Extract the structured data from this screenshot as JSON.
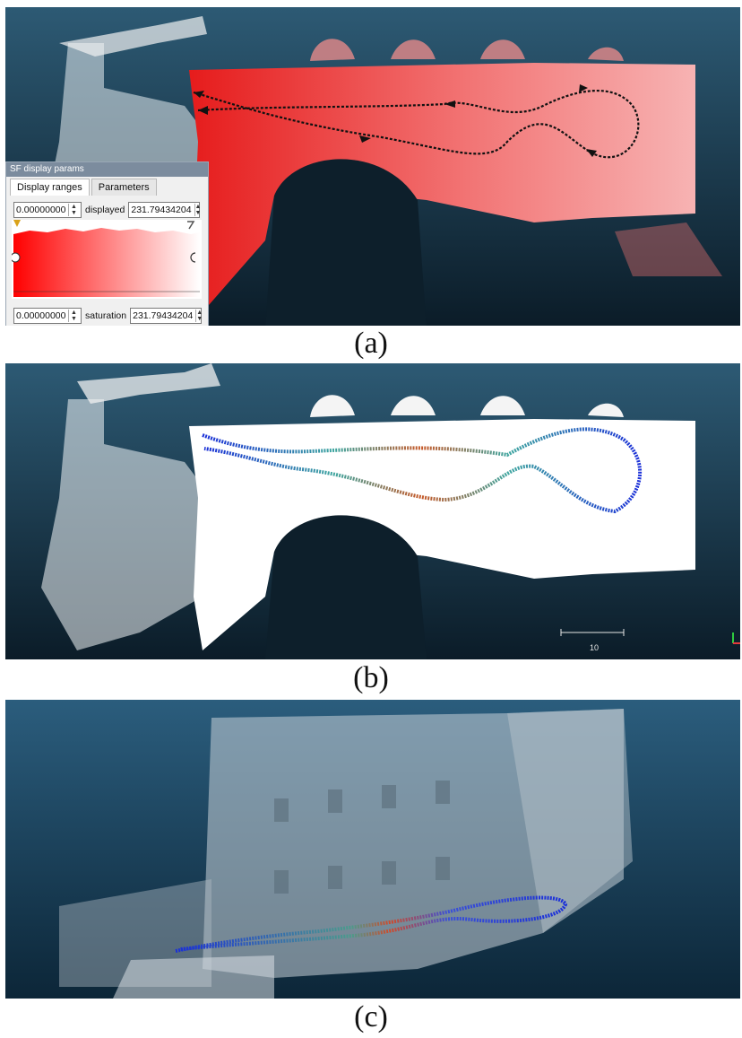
{
  "figure": {
    "panels": [
      {
        "caption": "(a)"
      },
      {
        "caption": "(b)"
      },
      {
        "caption": "(c)"
      }
    ]
  },
  "sf_dialog": {
    "title": "SF display params",
    "tabs": [
      "Display ranges",
      "Parameters"
    ],
    "display_min": "0.00000000",
    "displayed_label": "displayed",
    "display_max": "231.79434204",
    "saturation_min": "0.00000000",
    "saturation_label": "saturation",
    "saturation_max": "231.79434204"
  },
  "scale_bar": {
    "label": "10"
  },
  "colors": {
    "background_dark": "#0f2230",
    "cloud_red": "#f06060",
    "trajectory_blue": "#1a2fd8",
    "trajectory_arrows": "#111111"
  }
}
